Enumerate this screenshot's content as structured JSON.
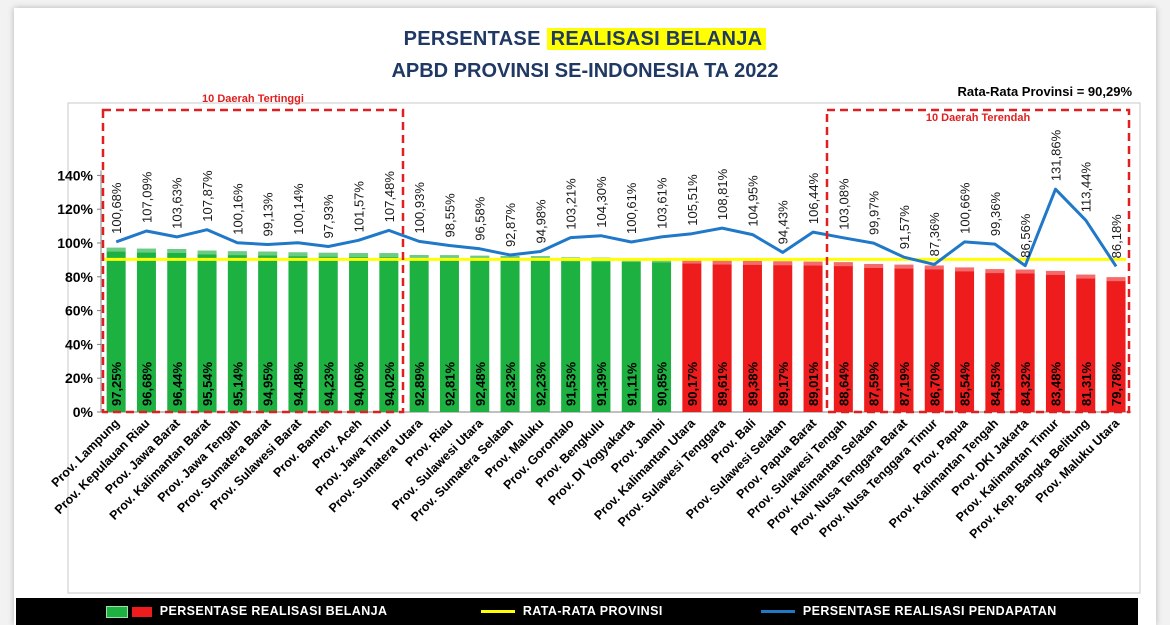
{
  "title": {
    "line1_prefix": "PERSENTASE ",
    "line1_highlight": "REALISASI BELANJA",
    "line2": "APBD PROVINSI SE-INDONESIA TA 2022"
  },
  "average_label": "Rata-Rata Provinsi = 90,29%",
  "groups": {
    "top": "10 Daerah Tertinggi",
    "bottom": "10 Daerah Terendah"
  },
  "legend": {
    "belanja": "PERSENTASE REALISASI BELANJA",
    "rata_rata": "RATA-RATA PROVINSI",
    "pendapatan": "PERSENTASE REALISASI PENDAPATAN"
  },
  "colors": {
    "green": "#1db141",
    "red": "#ee1c1c",
    "average_line": "#ffff00",
    "revenue_line": "#1f78c8",
    "title": "#1f3864",
    "group_box": "#e02020"
  },
  "chart_data": {
    "type": "bar",
    "ylim": [
      0,
      140
    ],
    "yticks": [
      "0%",
      "20%",
      "40%",
      "60%",
      "80%",
      "100%",
      "120%",
      "140%"
    ],
    "grid": false,
    "legend_position": "bottom",
    "categories": [
      "Prov. Lampung",
      "Prov. Kepulauan Riau",
      "Prov. Jawa Barat",
      "Prov. Kalimantan Barat",
      "Prov. Jawa Tengah",
      "Prov. Sumatera Barat",
      "Prov. Sulawesi Barat",
      "Prov. Banten",
      "Prov. Aceh",
      "Prov. Jawa Timur",
      "Prov. Sumatera Utara",
      "Prov. Riau",
      "Prov. Sulawesi Utara",
      "Prov. Sumatera Selatan",
      "Prov. Maluku",
      "Prov. Gorontalo",
      "Prov. Bengkulu",
      "Prov. DI Yogyakarta",
      "Prov. Jambi",
      "Prov. Kalimantan Utara",
      "Prov. Sulawesi Tenggara",
      "Prov. Bali",
      "Prov. Sulawesi Selatan",
      "Prov. Papua Barat",
      "Prov. Sulawesi Tengah",
      "Prov. Kalimantan Selatan",
      "Prov. Nusa Tenggara Barat",
      "Prov. Nusa Tenggara Timur",
      "Prov. Papua",
      "Prov. Kalimantan Tengah",
      "Prov. DKI Jakarta",
      "Prov. Kalimantan Timur",
      "Prov. Kep. Bangka Belitung",
      "Prov. Maluku Utara"
    ],
    "series": [
      {
        "name": "PERSENTASE REALISASI BELANJA",
        "type": "bar",
        "values": [
          97.25,
          96.68,
          96.44,
          95.54,
          95.14,
          94.95,
          94.48,
          94.23,
          94.06,
          94.02,
          92.89,
          92.81,
          92.48,
          92.32,
          92.23,
          91.53,
          91.39,
          91.11,
          90.85,
          90.17,
          89.61,
          89.38,
          89.17,
          89.01,
          88.64,
          87.59,
          87.19,
          86.7,
          85.54,
          84.53,
          84.32,
          83.48,
          81.31,
          79.78
        ],
        "labels": [
          "97,25%",
          "96,68%",
          "96,44%",
          "95,54%",
          "95,14%",
          "94,95%",
          "94,48%",
          "94,23%",
          "94,06%",
          "94,02%",
          "92,89%",
          "92,81%",
          "92,48%",
          "92,32%",
          "92,23%",
          "91,53%",
          "91,39%",
          "91,11%",
          "90,85%",
          "90,17%",
          "89,61%",
          "89,38%",
          "89,17%",
          "89,01%",
          "88,64%",
          "87,59%",
          "87,19%",
          "86,70%",
          "85,54%",
          "84,53%",
          "84,32%",
          "83,48%",
          "81,31%",
          "79,78%"
        ]
      },
      {
        "name": "PERSENTASE REALISASI PENDAPATAN",
        "type": "line",
        "values": [
          100.68,
          107.09,
          103.63,
          107.87,
          100.16,
          99.13,
          100.14,
          97.93,
          101.57,
          107.48,
          100.93,
          98.55,
          96.58,
          92.87,
          94.98,
          103.21,
          104.3,
          100.61,
          103.61,
          105.51,
          108.81,
          104.95,
          94.43,
          106.44,
          103.08,
          99.97,
          91.57,
          87.36,
          100.66,
          99.36,
          86.56,
          131.86,
          113.44,
          86.18
        ],
        "labels": [
          "100,68%",
          "107,09%",
          "103,63%",
          "107,87%",
          "100,16%",
          "99,13%",
          "100,14%",
          "97,93%",
          "101,57%",
          "107,48%",
          "100,93%",
          "98,55%",
          "96,58%",
          "92,87%",
          "94,98%",
          "103,21%",
          "104,30%",
          "100,61%",
          "103,61%",
          "105,51%",
          "108,81%",
          "104,95%",
          "94,43%",
          "106,44%",
          "103,08%",
          "99,97%",
          "91,57%",
          "87,36%",
          "100,66%",
          "99,36%",
          "86,56%",
          "131,86%",
          "113,44%",
          "86,18%"
        ]
      },
      {
        "name": "RATA-RATA PROVINSI",
        "type": "line",
        "value": 90.29
      }
    ],
    "green_count": 19
  }
}
